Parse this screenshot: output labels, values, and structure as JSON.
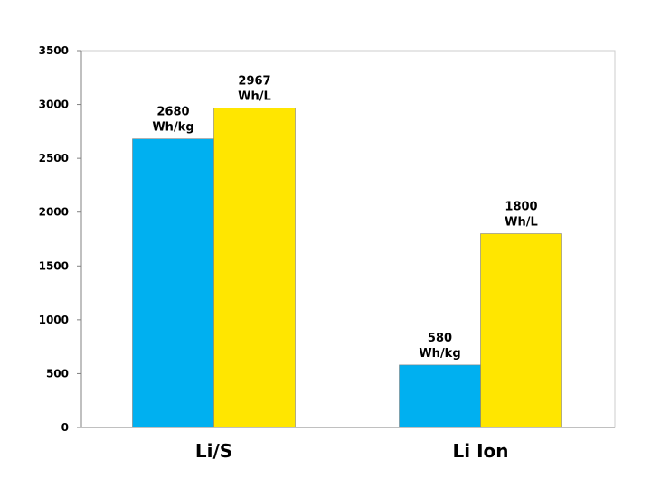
{
  "chart_data": {
    "type": "bar",
    "title": "",
    "xlabel": "",
    "ylabel": "",
    "ylim": [
      0,
      3500
    ],
    "yticks": [
      0,
      500,
      1000,
      1500,
      2000,
      2500,
      3000,
      3500
    ],
    "grid": false,
    "legend": "none",
    "categories": [
      "Li/S",
      "Li Ion"
    ],
    "series": [
      {
        "color": "#00b0f0",
        "values": [
          2680,
          580
        ],
        "labels": [
          [
            "2680",
            "Wh/kg"
          ],
          [
            "580",
            "Wh/kg"
          ]
        ]
      },
      {
        "color": "#ffe600",
        "values": [
          2967,
          1800
        ],
        "labels": [
          [
            "2967",
            "Wh/L"
          ],
          [
            "1800",
            "Wh/L"
          ]
        ]
      }
    ]
  }
}
